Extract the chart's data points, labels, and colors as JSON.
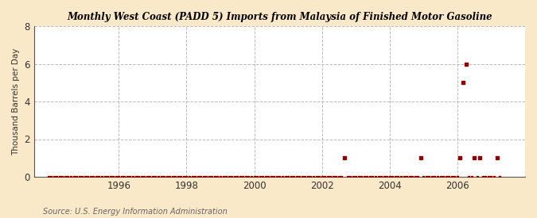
{
  "title": "Monthly West Coast (PADD 5) Imports from Malaysia of Finished Motor Gasoline",
  "ylabel": "Thousand Barrels per Day",
  "source": "Source: U.S. Energy Information Administration",
  "background_color": "#fae9c8",
  "plot_background_color": "#ffffff",
  "marker_color": "#8b0000",
  "ylim": [
    0,
    8
  ],
  "yticks": [
    0,
    2,
    4,
    6,
    8
  ],
  "xlim_start": 1993.5,
  "xlim_end": 2008.0,
  "xticks": [
    1996,
    1998,
    2000,
    2002,
    2004,
    2006
  ],
  "data_points": [
    [
      1993.917,
      0.0
    ],
    [
      1994.0,
      0.0
    ],
    [
      1994.083,
      0.0
    ],
    [
      1994.167,
      0.0
    ],
    [
      1994.25,
      0.0
    ],
    [
      1994.333,
      0.0
    ],
    [
      1994.417,
      0.0
    ],
    [
      1994.5,
      0.0
    ],
    [
      1994.583,
      0.0
    ],
    [
      1994.667,
      0.0
    ],
    [
      1994.75,
      0.0
    ],
    [
      1994.833,
      0.0
    ],
    [
      1994.917,
      0.0
    ],
    [
      1995.0,
      0.0
    ],
    [
      1995.083,
      0.0
    ],
    [
      1995.167,
      0.0
    ],
    [
      1995.25,
      0.0
    ],
    [
      1995.333,
      0.0
    ],
    [
      1995.417,
      0.0
    ],
    [
      1995.5,
      0.0
    ],
    [
      1995.583,
      0.0
    ],
    [
      1995.667,
      0.0
    ],
    [
      1995.75,
      0.0
    ],
    [
      1995.833,
      0.0
    ],
    [
      1995.917,
      0.0
    ],
    [
      1996.0,
      0.0
    ],
    [
      1996.083,
      0.0
    ],
    [
      1996.167,
      0.0
    ],
    [
      1996.25,
      0.0
    ],
    [
      1996.333,
      0.0
    ],
    [
      1996.417,
      0.0
    ],
    [
      1996.5,
      0.0
    ],
    [
      1996.583,
      0.0
    ],
    [
      1996.667,
      0.0
    ],
    [
      1996.75,
      0.0
    ],
    [
      1996.833,
      0.0
    ],
    [
      1996.917,
      0.0
    ],
    [
      1997.0,
      0.0
    ],
    [
      1997.083,
      0.0
    ],
    [
      1997.167,
      0.0
    ],
    [
      1997.25,
      0.0
    ],
    [
      1997.333,
      0.0
    ],
    [
      1997.417,
      0.0
    ],
    [
      1997.5,
      0.0
    ],
    [
      1997.583,
      0.0
    ],
    [
      1997.667,
      0.0
    ],
    [
      1997.75,
      0.0
    ],
    [
      1997.833,
      0.0
    ],
    [
      1997.917,
      0.0
    ],
    [
      1998.0,
      0.0
    ],
    [
      1998.083,
      0.0
    ],
    [
      1998.167,
      0.0
    ],
    [
      1998.25,
      0.0
    ],
    [
      1998.333,
      0.0
    ],
    [
      1998.417,
      0.0
    ],
    [
      1998.5,
      0.0
    ],
    [
      1998.583,
      0.0
    ],
    [
      1998.667,
      0.0
    ],
    [
      1998.75,
      0.0
    ],
    [
      1998.833,
      0.0
    ],
    [
      1998.917,
      0.0
    ],
    [
      1999.0,
      0.0
    ],
    [
      1999.083,
      0.0
    ],
    [
      1999.167,
      0.0
    ],
    [
      1999.25,
      0.0
    ],
    [
      1999.333,
      0.0
    ],
    [
      1999.417,
      0.0
    ],
    [
      1999.5,
      0.0
    ],
    [
      1999.583,
      0.0
    ],
    [
      1999.667,
      0.0
    ],
    [
      1999.75,
      0.0
    ],
    [
      1999.833,
      0.0
    ],
    [
      1999.917,
      0.0
    ],
    [
      2000.0,
      0.0
    ],
    [
      2000.083,
      0.0
    ],
    [
      2000.167,
      0.0
    ],
    [
      2000.25,
      0.0
    ],
    [
      2000.333,
      0.0
    ],
    [
      2000.417,
      0.0
    ],
    [
      2000.5,
      0.0
    ],
    [
      2000.583,
      0.0
    ],
    [
      2000.667,
      0.0
    ],
    [
      2000.75,
      0.0
    ],
    [
      2000.833,
      0.0
    ],
    [
      2000.917,
      0.0
    ],
    [
      2001.0,
      0.0
    ],
    [
      2001.083,
      0.0
    ],
    [
      2001.167,
      0.0
    ],
    [
      2001.25,
      0.0
    ],
    [
      2001.333,
      0.0
    ],
    [
      2001.417,
      0.0
    ],
    [
      2001.5,
      0.0
    ],
    [
      2001.583,
      0.0
    ],
    [
      2001.667,
      0.0
    ],
    [
      2001.75,
      0.0
    ],
    [
      2001.833,
      0.0
    ],
    [
      2001.917,
      0.0
    ],
    [
      2002.0,
      0.0
    ],
    [
      2002.083,
      0.0
    ],
    [
      2002.167,
      0.0
    ],
    [
      2002.25,
      0.0
    ],
    [
      2002.333,
      0.0
    ],
    [
      2002.417,
      0.0
    ],
    [
      2002.5,
      0.0
    ],
    [
      2002.583,
      0.0
    ],
    [
      2002.667,
      1.0
    ],
    [
      2002.75,
      0.0
    ],
    [
      2002.833,
      0.0
    ],
    [
      2002.917,
      0.0
    ],
    [
      2003.0,
      0.0
    ],
    [
      2003.083,
      0.0
    ],
    [
      2003.167,
      0.0
    ],
    [
      2003.25,
      0.0
    ],
    [
      2003.333,
      0.0
    ],
    [
      2003.417,
      0.0
    ],
    [
      2003.5,
      0.0
    ],
    [
      2003.583,
      0.0
    ],
    [
      2003.667,
      0.0
    ],
    [
      2003.75,
      0.0
    ],
    [
      2003.833,
      0.0
    ],
    [
      2003.917,
      0.0
    ],
    [
      2004.0,
      0.0
    ],
    [
      2004.083,
      0.0
    ],
    [
      2004.167,
      0.0
    ],
    [
      2004.25,
      0.0
    ],
    [
      2004.333,
      0.0
    ],
    [
      2004.417,
      0.0
    ],
    [
      2004.5,
      0.0
    ],
    [
      2004.583,
      0.0
    ],
    [
      2004.667,
      0.0
    ],
    [
      2004.75,
      0.0
    ],
    [
      2004.833,
      0.0
    ],
    [
      2004.917,
      1.0
    ],
    [
      2005.0,
      0.0
    ],
    [
      2005.083,
      0.0
    ],
    [
      2005.167,
      0.0
    ],
    [
      2005.25,
      0.0
    ],
    [
      2005.333,
      0.0
    ],
    [
      2005.417,
      0.0
    ],
    [
      2005.5,
      0.0
    ],
    [
      2005.583,
      0.0
    ],
    [
      2005.667,
      0.0
    ],
    [
      2005.75,
      0.0
    ],
    [
      2005.833,
      0.0
    ],
    [
      2005.917,
      0.0
    ],
    [
      2006.0,
      0.0
    ],
    [
      2006.083,
      1.0
    ],
    [
      2006.167,
      5.0
    ],
    [
      2006.25,
      6.0
    ],
    [
      2006.333,
      0.0
    ],
    [
      2006.417,
      0.0
    ],
    [
      2006.5,
      1.0
    ],
    [
      2006.583,
      0.0
    ],
    [
      2006.667,
      1.0
    ],
    [
      2006.75,
      0.0
    ],
    [
      2006.833,
      0.0
    ],
    [
      2006.917,
      0.0
    ],
    [
      2007.0,
      0.0
    ],
    [
      2007.083,
      0.0
    ],
    [
      2007.167,
      1.0
    ],
    [
      2007.25,
      0.0
    ]
  ]
}
